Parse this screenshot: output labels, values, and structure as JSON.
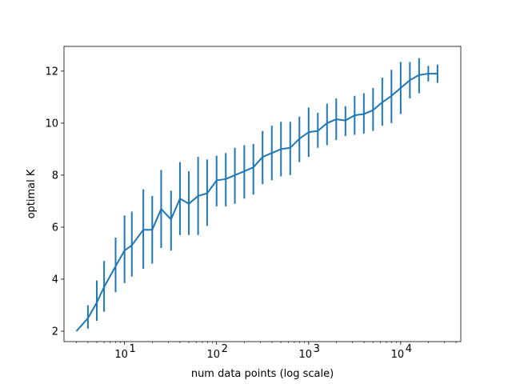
{
  "chart_data": {
    "type": "line",
    "title": "",
    "xlabel": "num data points (log scale)",
    "ylabel": "optimal K",
    "x_scale": "log",
    "xlim": [
      2.2,
      45000
    ],
    "ylim": [
      1.6,
      12.95
    ],
    "grid": false,
    "legend": "none",
    "color": "#1f77b4",
    "x_ticks": [
      {
        "value": 10,
        "base": "10",
        "exp": "1"
      },
      {
        "value": 100,
        "base": "10",
        "exp": "2"
      },
      {
        "value": 1000,
        "base": "10",
        "exp": "3"
      },
      {
        "value": 10000,
        "base": "10",
        "exp": "4"
      }
    ],
    "y_ticks": [
      {
        "value": 2,
        "label": "2"
      },
      {
        "value": 4,
        "label": "4"
      },
      {
        "value": 6,
        "label": "6"
      },
      {
        "value": 8,
        "label": "8"
      },
      {
        "value": 10,
        "label": "10"
      },
      {
        "value": 12,
        "label": "12"
      }
    ],
    "series": [
      {
        "points": [
          {
            "x": 3,
            "y": 2.0,
            "lo": 2.0,
            "hi": 2.0
          },
          {
            "x": 4,
            "y": 2.5,
            "lo": 2.1,
            "hi": 3.0
          },
          {
            "x": 5,
            "y": 3.1,
            "lo": 2.4,
            "hi": 3.95
          },
          {
            "x": 6,
            "y": 3.7,
            "lo": 2.75,
            "hi": 4.7
          },
          {
            "x": 8,
            "y": 4.5,
            "lo": 3.5,
            "hi": 5.6
          },
          {
            "x": 10,
            "y": 5.1,
            "lo": 3.85,
            "hi": 6.45
          },
          {
            "x": 12,
            "y": 5.3,
            "lo": 4.1,
            "hi": 6.6
          },
          {
            "x": 16,
            "y": 5.9,
            "lo": 4.4,
            "hi": 7.45
          },
          {
            "x": 20,
            "y": 5.9,
            "lo": 4.6,
            "hi": 7.2
          },
          {
            "x": 25,
            "y": 6.7,
            "lo": 5.2,
            "hi": 8.2
          },
          {
            "x": 32,
            "y": 6.3,
            "lo": 5.1,
            "hi": 7.4
          },
          {
            "x": 40,
            "y": 7.1,
            "lo": 5.7,
            "hi": 8.5
          },
          {
            "x": 50,
            "y": 6.9,
            "lo": 5.7,
            "hi": 8.15
          },
          {
            "x": 63,
            "y": 7.2,
            "lo": 5.7,
            "hi": 8.7
          },
          {
            "x": 79,
            "y": 7.3,
            "lo": 6.05,
            "hi": 8.6
          },
          {
            "x": 100,
            "y": 7.8,
            "lo": 6.8,
            "hi": 8.75
          },
          {
            "x": 126,
            "y": 7.85,
            "lo": 6.8,
            "hi": 8.85
          },
          {
            "x": 158,
            "y": 8.0,
            "lo": 6.9,
            "hi": 9.05
          },
          {
            "x": 200,
            "y": 8.15,
            "lo": 7.1,
            "hi": 9.15
          },
          {
            "x": 251,
            "y": 8.3,
            "lo": 7.25,
            "hi": 9.2
          },
          {
            "x": 316,
            "y": 8.7,
            "lo": 7.65,
            "hi": 9.7
          },
          {
            "x": 398,
            "y": 8.85,
            "lo": 7.8,
            "hi": 9.9
          },
          {
            "x": 501,
            "y": 9.0,
            "lo": 7.95,
            "hi": 10.05
          },
          {
            "x": 631,
            "y": 9.05,
            "lo": 8.0,
            "hi": 10.05
          },
          {
            "x": 794,
            "y": 9.4,
            "lo": 8.5,
            "hi": 10.25
          },
          {
            "x": 1000,
            "y": 9.65,
            "lo": 8.7,
            "hi": 10.6
          },
          {
            "x": 1259,
            "y": 9.7,
            "lo": 9.05,
            "hi": 10.4
          },
          {
            "x": 1585,
            "y": 10.0,
            "lo": 9.15,
            "hi": 10.75
          },
          {
            "x": 1995,
            "y": 10.15,
            "lo": 9.35,
            "hi": 10.95
          },
          {
            "x": 2512,
            "y": 10.1,
            "lo": 9.5,
            "hi": 10.65
          },
          {
            "x": 3162,
            "y": 10.3,
            "lo": 9.55,
            "hi": 11.05
          },
          {
            "x": 3981,
            "y": 10.35,
            "lo": 9.6,
            "hi": 11.15
          },
          {
            "x": 5012,
            "y": 10.5,
            "lo": 9.7,
            "hi": 11.35
          },
          {
            "x": 6310,
            "y": 10.8,
            "lo": 9.9,
            "hi": 11.75
          },
          {
            "x": 7943,
            "y": 11.05,
            "lo": 10.0,
            "hi": 12.05
          },
          {
            "x": 10000,
            "y": 11.35,
            "lo": 10.35,
            "hi": 12.35
          },
          {
            "x": 12589,
            "y": 11.65,
            "lo": 10.95,
            "hi": 12.35
          },
          {
            "x": 15849,
            "y": 11.85,
            "lo": 11.15,
            "hi": 12.5
          },
          {
            "x": 19953,
            "y": 11.9,
            "lo": 11.6,
            "hi": 12.2
          },
          {
            "x": 25119,
            "y": 11.9,
            "lo": 11.55,
            "hi": 12.25
          }
        ]
      }
    ]
  }
}
